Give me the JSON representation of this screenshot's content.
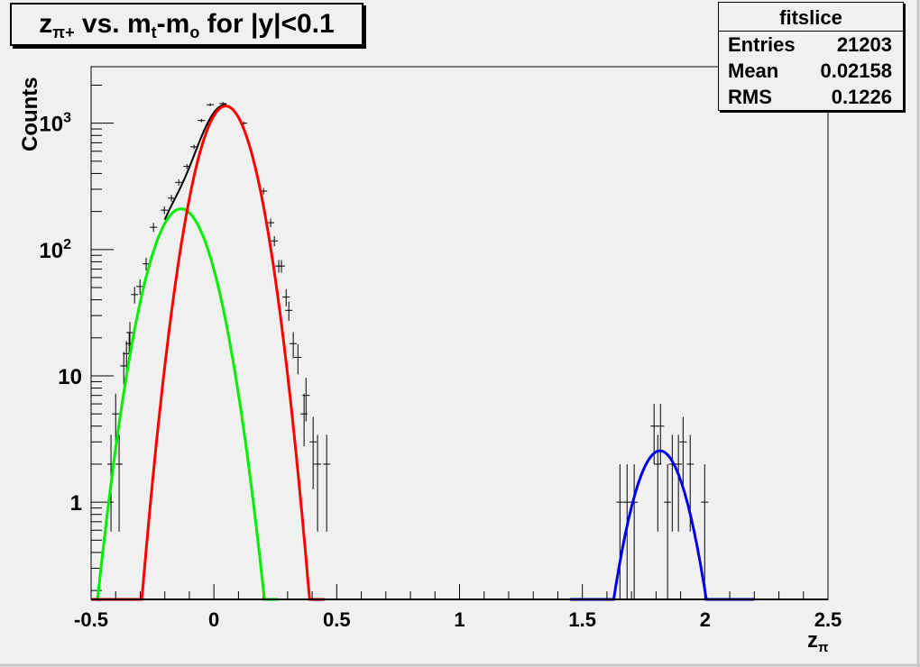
{
  "chart_data": {
    "type": "scatter",
    "title": {
      "base": "z",
      "sub": "π+",
      "rest1": " vs. m",
      "sub2": "t",
      "rest2": "-m",
      "sub3": "o",
      "rest3": " for |y|<0.1"
    },
    "xlabel": {
      "base": "z",
      "sub": "π"
    },
    "ylabel": "Counts",
    "xlim": [
      -0.5,
      2.5
    ],
    "ylim": [
      0.17,
      2800
    ],
    "yscale": "log",
    "grid": false,
    "x_ticks": [
      -0.5,
      0,
      0.5,
      1,
      1.5,
      2,
      2.5
    ],
    "x_tick_labels": [
      "-0.5",
      "0",
      "0.5",
      "1",
      "1.5",
      "2",
      "2.5"
    ],
    "y_ticks": [
      1,
      10,
      100,
      1000
    ],
    "y_tick_labels": [
      {
        "base": "1",
        "exp": ""
      },
      {
        "base": "10",
        "exp": ""
      },
      {
        "base": "10",
        "exp": "2"
      },
      {
        "base": "10",
        "exp": "3"
      }
    ],
    "data_points": {
      "x": [
        -0.419,
        -0.4,
        -0.386,
        -0.367,
        -0.356,
        -0.345,
        -0.342,
        -0.323,
        -0.301,
        -0.276,
        -0.246,
        -0.202,
        -0.173,
        -0.143,
        -0.11,
        -0.081,
        -0.051,
        -0.015,
        0.037,
        0.121,
        0.202,
        0.231,
        0.246,
        0.264,
        0.275,
        0.294,
        0.305,
        0.323,
        0.342,
        0.367,
        0.375,
        0.404,
        0.422,
        0.459,
        1.653,
        1.682,
        1.711,
        1.792,
        1.807,
        1.818,
        1.847,
        1.866,
        1.891,
        1.91,
        1.939,
        1.998
      ],
      "y": [
        2,
        5,
        2,
        12,
        15,
        18,
        22,
        44,
        51,
        77,
        150,
        205,
        255,
        340,
        455,
        650,
        1050,
        1400,
        1430,
        1000,
        290,
        163,
        117,
        74,
        74,
        42,
        33,
        18,
        14,
        5,
        7,
        3,
        2,
        2,
        1,
        1,
        1,
        4,
        2,
        4,
        1,
        2,
        2,
        3,
        2,
        1
      ],
      "color": "#000000"
    },
    "series": [
      {
        "type": "gaussian",
        "color": "#ff0000",
        "amplitude": 1368,
        "mean": 0.048,
        "sigma": 0.0805,
        "range": [
          -0.5,
          0.45
        ]
      },
      {
        "type": "gaussian",
        "color": "#00ee00",
        "amplitude": 210,
        "mean": -0.134,
        "sigma": 0.09,
        "range": [
          -0.5,
          0.26
        ]
      },
      {
        "type": "gaussian",
        "color": "#0000ee",
        "amplitude": 2.55,
        "mean": 1.816,
        "sigma": 0.081,
        "range": [
          1.45,
          2.2
        ]
      },
      {
        "type": "sum",
        "color": "#000000",
        "components": [
          0,
          1
        ],
        "range": [
          -0.2,
          0.05
        ]
      }
    ]
  },
  "stats": {
    "name": "fitslice",
    "rows": [
      {
        "label": "Entries",
        "value": "21203"
      },
      {
        "label": "Mean",
        "value": "0.02158"
      },
      {
        "label": "RMS",
        "value": "0.1226"
      }
    ]
  }
}
